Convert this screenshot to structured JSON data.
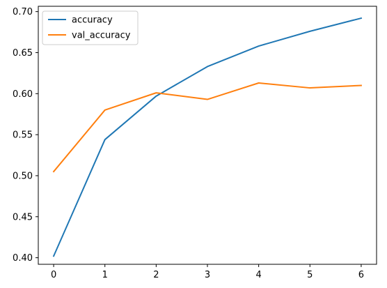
{
  "chart_data": {
    "type": "line",
    "title": "",
    "xlabel": "",
    "ylabel": "",
    "x": [
      0,
      1,
      2,
      3,
      4,
      5,
      6
    ],
    "xlim": [
      -0.3,
      6.3
    ],
    "ylim": [
      0.392,
      0.7065
    ],
    "xticks": [
      "0",
      "1",
      "2",
      "3",
      "4",
      "5",
      "6"
    ],
    "yticks": [
      "0.40",
      "0.45",
      "0.50",
      "0.55",
      "0.60",
      "0.65",
      "0.70"
    ],
    "grid": false,
    "legend_position": "upper-left",
    "series": [
      {
        "name": "accuracy",
        "color": "#1f77b4",
        "values": [
          0.402,
          0.544,
          0.597,
          0.633,
          0.658,
          0.676,
          0.692
        ]
      },
      {
        "name": "val_accuracy",
        "color": "#ff7f0e",
        "values": [
          0.505,
          0.58,
          0.601,
          0.593,
          0.613,
          0.607,
          0.61
        ]
      }
    ]
  }
}
